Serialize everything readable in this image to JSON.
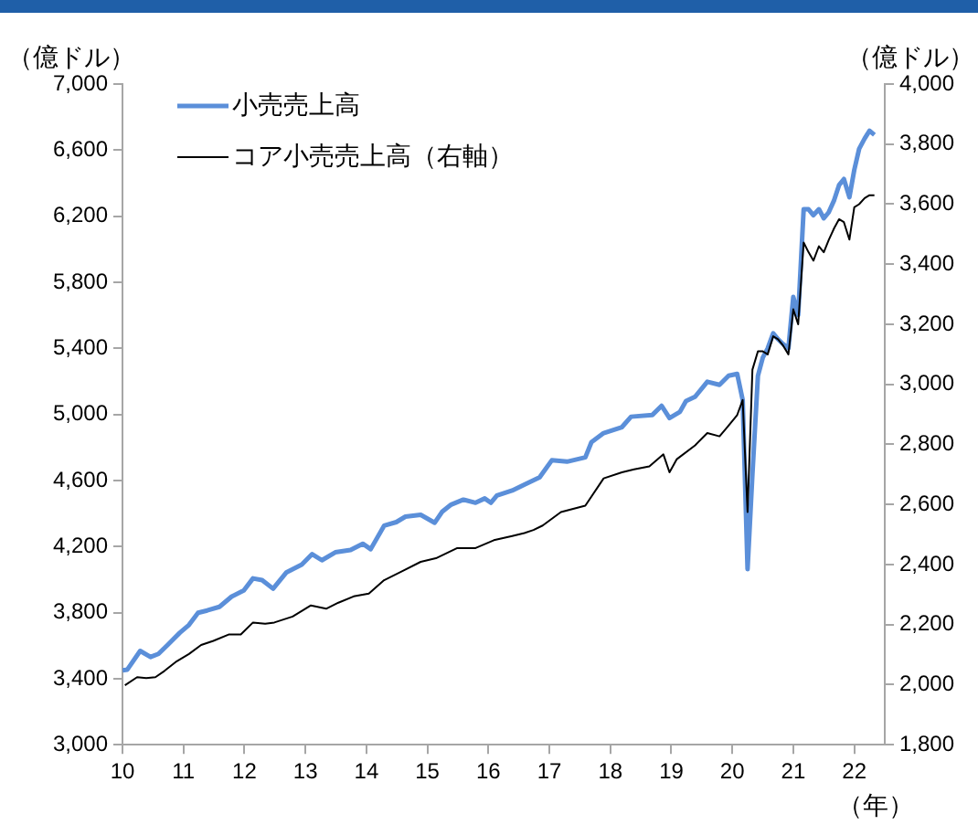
{
  "chart_data": {
    "type": "line",
    "ylabel": "（億ドル）",
    "y2label": "（億ドル）",
    "xlabel": "（年）",
    "xlim": [
      10,
      22.5
    ],
    "xticks": [
      10,
      11,
      12,
      13,
      14,
      15,
      16,
      17,
      18,
      19,
      20,
      21,
      22
    ],
    "ylim": [
      3000,
      7000
    ],
    "yticks": [
      {
        "value": 3000,
        "label": "3,000"
      },
      {
        "value": 3400,
        "label": "3,400"
      },
      {
        "value": 3800,
        "label": "3,800"
      },
      {
        "value": 4200,
        "label": "4,200"
      },
      {
        "value": 4600,
        "label": "4,600"
      },
      {
        "value": 5000,
        "label": "5,000"
      },
      {
        "value": 5400,
        "label": "5,400"
      },
      {
        "value": 5800,
        "label": "5,800"
      },
      {
        "value": 6200,
        "label": "6,200"
      },
      {
        "value": 6600,
        "label": "6,600"
      },
      {
        "value": 7000,
        "label": "7,000"
      }
    ],
    "y2lim": [
      1800,
      4000
    ],
    "y2ticks": [
      {
        "value": 1800,
        "label": "1,800"
      },
      {
        "value": 2000,
        "label": "2,000"
      },
      {
        "value": 2200,
        "label": "2,200"
      },
      {
        "value": 2400,
        "label": "2,400"
      },
      {
        "value": 2600,
        "label": "2,600"
      },
      {
        "value": 2800,
        "label": "2,800"
      },
      {
        "value": 3000,
        "label": "3,000"
      },
      {
        "value": 3200,
        "label": "3,200"
      },
      {
        "value": 3400,
        "label": "3,400"
      },
      {
        "value": 3600,
        "label": "3,600"
      },
      {
        "value": 3800,
        "label": "3,800"
      },
      {
        "value": 4000,
        "label": "4,000"
      }
    ],
    "grid": false,
    "legend": "top left",
    "marker": "none",
    "line_style": "solid",
    "series": [
      {
        "name": "小売売上高",
        "color": "#5b8fd9",
        "x": [
          10.0,
          10.08,
          10.29,
          10.46,
          10.59,
          10.74,
          10.94,
          11.09,
          11.24,
          11.39,
          11.59,
          11.79,
          11.99,
          12.14,
          12.29,
          12.47,
          12.69,
          12.94,
          13.11,
          13.27,
          13.49,
          13.74,
          13.94,
          14.07,
          14.29,
          14.49,
          14.64,
          14.89,
          15.12,
          15.24,
          15.39,
          15.59,
          15.79,
          15.94,
          16.04,
          16.14,
          16.39,
          16.59,
          16.84,
          17.04,
          17.29,
          17.59,
          17.69,
          17.89,
          18.04,
          18.19,
          18.34,
          18.69,
          18.84,
          18.97,
          19.14,
          19.24,
          19.39,
          19.59,
          19.79,
          19.94,
          20.08,
          20.17,
          20.25,
          20.33,
          20.42,
          20.5,
          20.58,
          20.67,
          20.75,
          20.83,
          20.92,
          21.0,
          21.08,
          21.17,
          21.25,
          21.33,
          21.42,
          21.5,
          21.58,
          21.67,
          21.75,
          21.83,
          21.92,
          22.0,
          22.08,
          22.17,
          22.25,
          22.33
        ],
        "values": [
          3450,
          3455,
          3568,
          3531,
          3550,
          3604,
          3678,
          3725,
          3799,
          3813,
          3835,
          3897,
          3934,
          4007,
          3997,
          3945,
          4044,
          4091,
          4154,
          4117,
          4165,
          4179,
          4217,
          4184,
          4326,
          4348,
          4381,
          4392,
          4344,
          4410,
          4454,
          4484,
          4465,
          4491,
          4465,
          4509,
          4539,
          4575,
          4619,
          4722,
          4714,
          4740,
          4832,
          4887,
          4905,
          4923,
          4986,
          4997,
          5052,
          4978,
          5015,
          5081,
          5107,
          5198,
          5179,
          5234,
          5245,
          5088,
          4063,
          4640,
          5234,
          5344,
          5399,
          5491,
          5455,
          5426,
          5400,
          5711,
          5601,
          6242,
          6242,
          6206,
          6242,
          6187,
          6223,
          6297,
          6388,
          6425,
          6315,
          6480,
          6608,
          6670,
          6717,
          6692
        ]
      },
      {
        "name": "コア小売売上高（右軸）",
        "color": "#000000",
        "axis": "y2",
        "x": [
          10.04,
          10.24,
          10.39,
          10.54,
          10.69,
          10.89,
          11.09,
          11.29,
          11.49,
          11.74,
          11.94,
          12.14,
          12.34,
          12.49,
          12.79,
          13.09,
          13.34,
          13.54,
          13.79,
          14.04,
          14.29,
          14.59,
          14.89,
          15.14,
          15.49,
          15.79,
          16.09,
          16.39,
          16.59,
          16.74,
          16.89,
          17.19,
          17.59,
          17.89,
          18.19,
          18.39,
          18.64,
          18.87,
          18.97,
          19.09,
          19.39,
          19.59,
          19.79,
          19.92,
          20.0,
          20.08,
          20.17,
          20.25,
          20.33,
          20.42,
          20.5,
          20.58,
          20.67,
          20.75,
          20.83,
          20.92,
          21.0,
          21.08,
          21.17,
          21.25,
          21.33,
          21.42,
          21.5,
          21.58,
          21.67,
          21.75,
          21.83,
          21.92,
          22.0,
          22.08,
          22.17,
          22.25,
          22.33
        ],
        "values": [
          1998,
          2025,
          2022,
          2025,
          2046,
          2078,
          2102,
          2132,
          2146,
          2167,
          2167,
          2207,
          2203,
          2207,
          2227,
          2264,
          2253,
          2273,
          2294,
          2303,
          2348,
          2378,
          2409,
          2421,
          2455,
          2455,
          2481,
          2495,
          2505,
          2515,
          2530,
          2575,
          2596,
          2687,
          2707,
          2717,
          2727,
          2767,
          2707,
          2751,
          2797,
          2838,
          2827,
          2858,
          2878,
          2898,
          2948,
          2575,
          3049,
          3110,
          3110,
          3100,
          3160,
          3150,
          3130,
          3100,
          3250,
          3200,
          3472,
          3440,
          3412,
          3460,
          3440,
          3480,
          3520,
          3550,
          3540,
          3482,
          3590,
          3600,
          3620,
          3630,
          3630
        ]
      }
    ]
  }
}
